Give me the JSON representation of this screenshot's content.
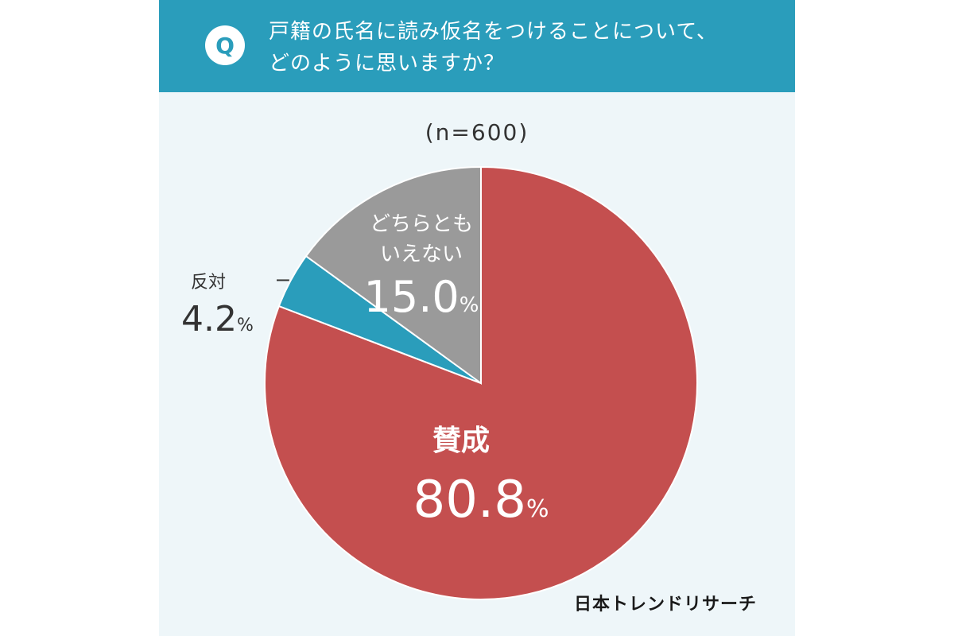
{
  "header": {
    "badge": "Q",
    "question_line1": "戸籍の氏名に読み仮名をつけることについて、",
    "question_line2": "どのように思いますか？"
  },
  "sample_label": "(n=600)",
  "brand": "日本トレンドリサーチ",
  "colors": {
    "header_bg": "#2a9dbb",
    "panel_bg": "#eef6f9",
    "agree": "#c44f4f",
    "oppose": "#2a9dbb",
    "neutral": "#9a9a9a"
  },
  "chart_data": {
    "type": "pie",
    "title": "",
    "slices": [
      {
        "label": "賛成",
        "value": 80.8,
        "display": "80.8",
        "unit": "%",
        "color": "#c44f4f"
      },
      {
        "label": "反対",
        "value": 4.2,
        "display": "4.2",
        "unit": "%",
        "color": "#2a9dbb"
      },
      {
        "label_line1": "どちらとも",
        "label_line2": "いえない",
        "value": 15.0,
        "display": "15.0",
        "unit": "%",
        "color": "#9a9a9a"
      }
    ]
  }
}
